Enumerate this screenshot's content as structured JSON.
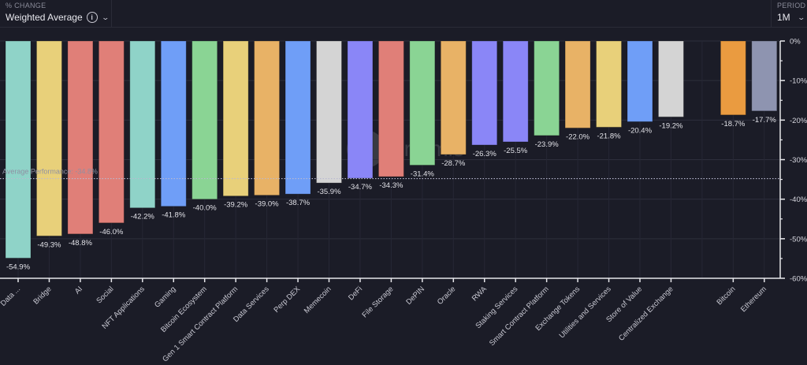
{
  "header": {
    "metric_label": "% CHANGE",
    "metric_value": "Weighted Average",
    "info_icon": "info-icon",
    "dropdown_icon": "chevron-down-icon",
    "period_label": "PERIOD",
    "period_value": "1M"
  },
  "watermark": {
    "text": "Artemis",
    "icon": "artemis-logo-icon"
  },
  "chart_data": {
    "type": "bar",
    "title": "",
    "xlabel": "",
    "ylabel": "% Change",
    "ylim": [
      -60,
      0
    ],
    "yticks": [
      0,
      -10,
      -20,
      -30,
      -40,
      -50,
      -60
    ],
    "ytick_labels": [
      "0%",
      "-10%",
      "-20%",
      "-30%",
      "-40%",
      "-50%",
      "-60%"
    ],
    "y_axis_position": "right",
    "grid": true,
    "reference_line": {
      "label": "Average Performance: -34.8%",
      "value": -34.8,
      "style": "dotted"
    },
    "categories": [
      "Data ...",
      "Bridge",
      "AI",
      "Social",
      "NFT Applications",
      "Gaming",
      "Bitcoin Ecosystem",
      "Gen 1 Smart Contract Platform",
      "Data Services",
      "Perp DEX",
      "Memecoin",
      "DeFi",
      "File Storage",
      "DePIN",
      "Oracle",
      "RWA",
      "Staking Services",
      "Smart Contract Platform",
      "Exchange Tokens",
      "Utilities and Services",
      "Store of Value",
      "Centralized Exchange",
      "",
      "Bitcoin",
      "Ethereum"
    ],
    "values": [
      -54.9,
      -49.3,
      -48.8,
      -46.0,
      -42.2,
      -41.8,
      -40.0,
      -39.2,
      -39.0,
      -38.7,
      -35.9,
      -34.7,
      -34.3,
      -31.4,
      -28.7,
      -26.3,
      -25.5,
      -23.9,
      -22.0,
      -21.8,
      -20.4,
      -19.2,
      null,
      -18.7,
      -17.7
    ],
    "data_labels": [
      "-54.9%",
      "-49.3%",
      "-48.8%",
      "-46.0%",
      "-42.2%",
      "-41.8%",
      "-40.0%",
      "-39.2%",
      "-39.0%",
      "-38.7%",
      "-35.9%",
      "-34.7%",
      "-34.3%",
      "-31.4%",
      "-28.7%",
      "-26.3%",
      "-25.5%",
      "-23.9%",
      "-22.0%",
      "-21.8%",
      "-20.4%",
      "-19.2%",
      "",
      "-18.7%",
      "-17.7%"
    ],
    "colors": [
      "#8fd3c8",
      "#e8d07a",
      "#e07f78",
      "#e07f78",
      "#8fd3c8",
      "#6f9ef7",
      "#8ad494",
      "#e8d07a",
      "#e8b266",
      "#6f9ef7",
      "#d4d4d4",
      "#8a86f7",
      "#e07f78",
      "#8ad494",
      "#e8b266",
      "#8a86f7",
      "#8a86f7",
      "#8ad494",
      "#e8b266",
      "#e8d07a",
      "#6f9ef7",
      "#d4d4d4",
      "",
      "#ea9b40",
      "#8e94b0"
    ]
  }
}
